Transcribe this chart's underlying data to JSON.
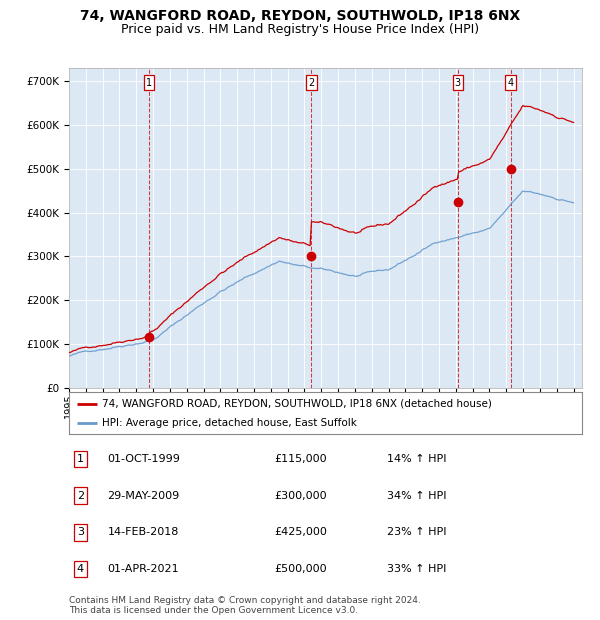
{
  "title_line1": "74, WANGFORD ROAD, REYDON, SOUTHWOLD, IP18 6NX",
  "title_line2": "Price paid vs. HM Land Registry's House Price Index (HPI)",
  "legend_line1": "74, WANGFORD ROAD, REYDON, SOUTHWOLD, IP18 6NX (detached house)",
  "legend_line2": "HPI: Average price, detached house, East Suffolk",
  "footer": "Contains HM Land Registry data © Crown copyright and database right 2024.\nThis data is licensed under the Open Government Licence v3.0.",
  "transactions": [
    {
      "num": 1,
      "date": "01-OCT-1999",
      "price": 115000,
      "pct": "14%",
      "direction": "↑"
    },
    {
      "num": 2,
      "date": "29-MAY-2009",
      "price": 300000,
      "pct": "34%",
      "direction": "↑"
    },
    {
      "num": 3,
      "date": "14-FEB-2018",
      "price": 425000,
      "pct": "23%",
      "direction": "↑"
    },
    {
      "num": 4,
      "date": "01-APR-2021",
      "price": 500000,
      "pct": "33%",
      "direction": "↑"
    }
  ],
  "transaction_dates_decimal": [
    1999.75,
    2009.41,
    2018.12,
    2021.25
  ],
  "ylim": [
    0,
    730000
  ],
  "xlim_start": 1995.0,
  "xlim_end": 2025.5,
  "background_color": "#dce9f5",
  "red_line_color": "#cc0000",
  "blue_line_color": "#6699cc",
  "marker_color": "#cc0000",
  "grid_color": "#ffffff",
  "title_fontsize": 10,
  "subtitle_fontsize": 9
}
